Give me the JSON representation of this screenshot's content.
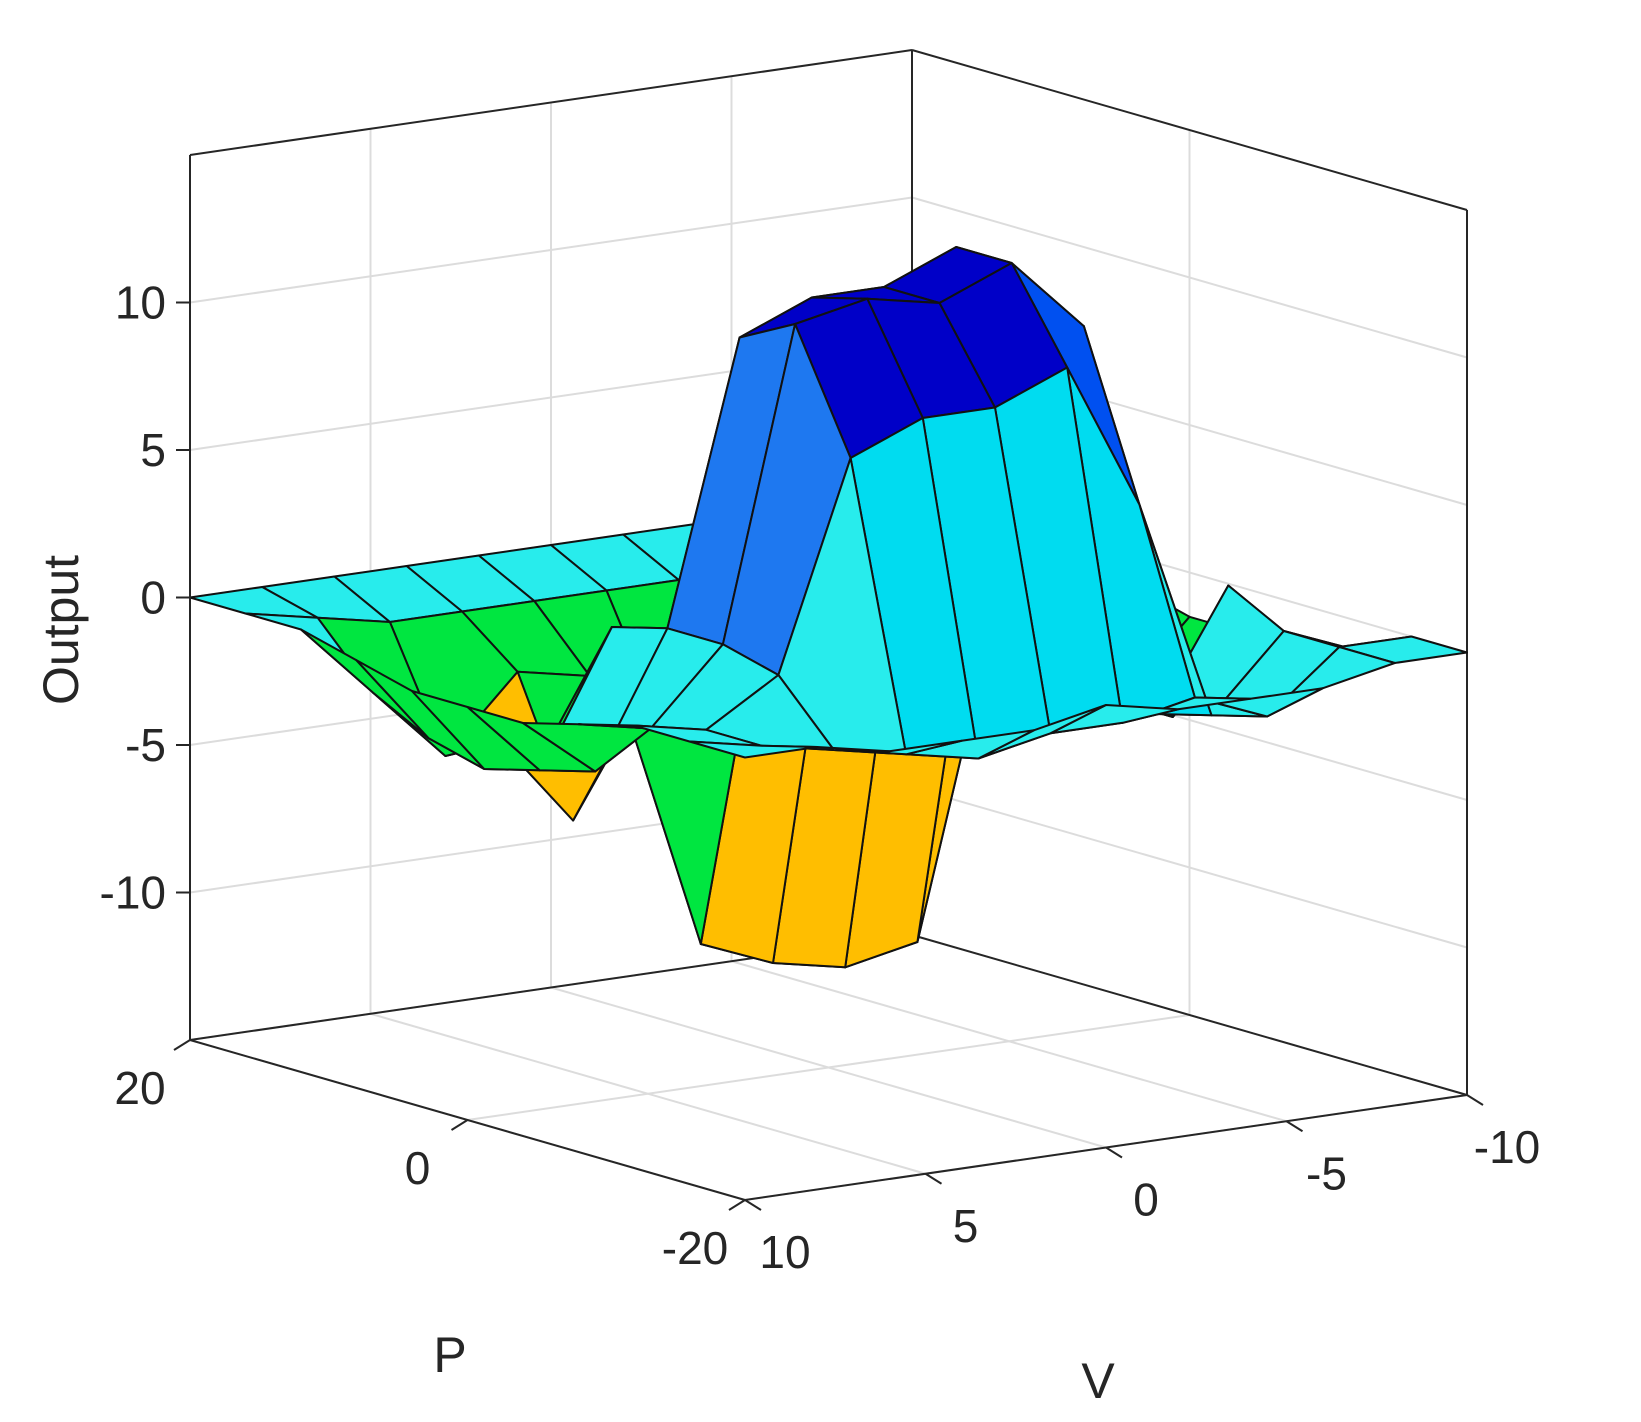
{
  "chart_data": {
    "type": "surface3d",
    "title": "",
    "xlabel": "P",
    "ylabel": "V",
    "zlabel": "Output",
    "xlim": [
      -20,
      20
    ],
    "ylim": [
      -10,
      10
    ],
    "zlim": [
      -15,
      15
    ],
    "xticks": [
      20,
      0,
      -20
    ],
    "yticks": [
      10,
      5,
      0,
      -5,
      -10
    ],
    "zticks": [
      10,
      5,
      0,
      -5,
      -10
    ],
    "x_tick_labels": [
      "20",
      "0",
      "-20"
    ],
    "y_tick_labels": [
      "10",
      "5",
      "0",
      "-5",
      "-10"
    ],
    "z_tick_labels": [
      "10",
      "5",
      "0",
      "-5",
      "-10"
    ],
    "grid": true,
    "colormap": [
      "#0000c8",
      "#0050f0",
      "#1e78f0",
      "#00dcf0",
      "#28ecec",
      "#00e640",
      "#ffbe00",
      "#ff5000",
      "#ff1e0a"
    ],
    "x": [
      -20,
      -16,
      -12,
      -8,
      -4,
      0,
      4,
      8,
      12,
      16,
      20
    ],
    "y": [
      -10,
      -8,
      -6,
      -4,
      -2,
      0,
      2,
      4,
      6,
      8,
      10
    ],
    "z": [
      [
        0,
        0,
        -1,
        -1.5,
        -1.5,
        -1.5,
        -1,
        0,
        0,
        0,
        0
      ],
      [
        0,
        0,
        0,
        1,
        -4,
        -4,
        -2.5,
        -1,
        0,
        0,
        0
      ],
      [
        -0.5,
        -2,
        -2.5,
        -3,
        1.5,
        -4,
        -2,
        -5,
        -4,
        -1,
        0
      ],
      [
        -0.5,
        -1,
        5,
        10.5,
        11,
        1,
        -12,
        -5,
        -3,
        -1,
        0
      ],
      [
        -0.5,
        -1.5,
        10,
        13,
        13,
        1.5,
        -12.5,
        -4,
        -4,
        -1,
        0
      ],
      [
        0,
        -1.5,
        9,
        12,
        12,
        1,
        -12,
        -6,
        -5,
        -1,
        0
      ],
      [
        -0.5,
        -2,
        9,
        12.5,
        12,
        0,
        -11,
        -3,
        -3,
        -1,
        0
      ],
      [
        -0.5,
        -1.5,
        8,
        12,
        11,
        0.5,
        -3,
        -7,
        -2.5,
        -1,
        0
      ],
      [
        -0.5,
        -1,
        1,
        1.5,
        1.5,
        1,
        -3,
        -4,
        -5,
        -1,
        0
      ],
      [
        0,
        -0.5,
        -0.5,
        -1,
        -3,
        -3.5,
        -4,
        -3.5,
        -2.5,
        -0.5,
        0
      ],
      [
        0,
        0,
        0,
        -0.5,
        -1,
        -1,
        -1,
        -0.5,
        0,
        0,
        0
      ]
    ]
  }
}
